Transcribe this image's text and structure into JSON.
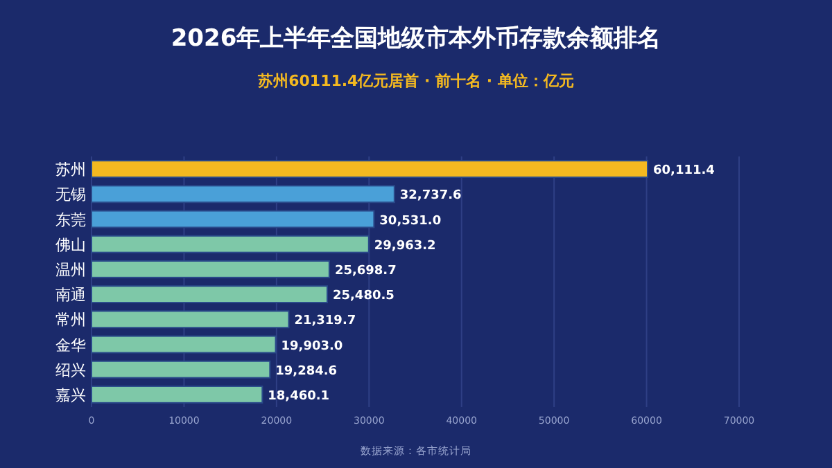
{
  "chart_data": {
    "type": "bar",
    "orientation": "horizontal",
    "title": "2026年上半年全国地级市本外币存款余额排名",
    "subtitle": "苏州60111.4亿元居首 · 前十名 · 单位：亿元",
    "categories": [
      "苏州",
      "无锡",
      "东莞",
      "佛山",
      "温州",
      "南通",
      "常州",
      "金华",
      "绍兴",
      "嘉兴"
    ],
    "values": [
      60111.4,
      32737.6,
      30531.0,
      29963.2,
      25698.7,
      25480.5,
      21319.7,
      19903.0,
      19284.6,
      18460.1
    ],
    "value_labels": [
      "60,111.4",
      "32,737.6",
      "30,531.0",
      "29,963.2",
      "25,698.7",
      "25,480.5",
      "21,319.7",
      "19,903.0",
      "19,284.6",
      "18,460.1"
    ],
    "colors": [
      "#f4b920",
      "#4aa0d8",
      "#4aa0d8",
      "#7ec8a8",
      "#7ec8a8",
      "#7ec8a8",
      "#7ec8a8",
      "#7ec8a8",
      "#7ec8a8",
      "#7ec8a8"
    ],
    "xlim": [
      0,
      70000
    ],
    "xticks": [
      0,
      10000,
      20000,
      30000,
      40000,
      50000,
      60000,
      70000
    ],
    "grid": "x",
    "annotations": [
      "数据来源：各市统计局"
    ]
  }
}
